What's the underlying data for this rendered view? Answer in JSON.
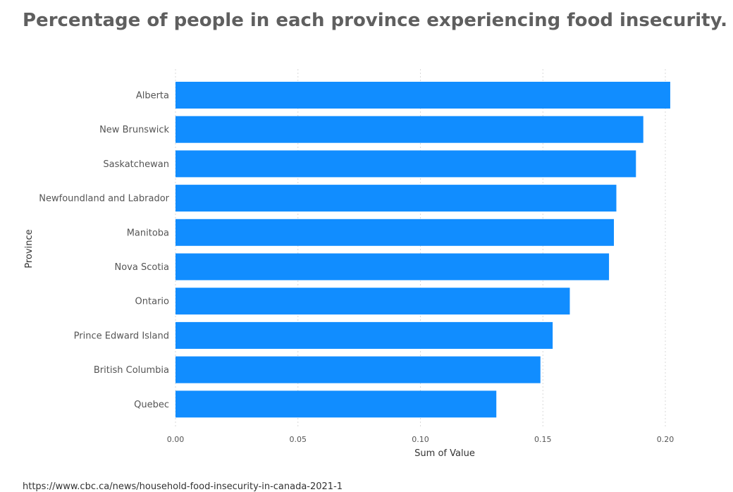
{
  "title": "Percentage of people in each province experiencing food insecurity.",
  "chart_data": {
    "type": "bar",
    "orientation": "horizontal",
    "categories": [
      "Alberta",
      "New Brunswick",
      "Saskatchewan",
      "Newfoundland and Labrador",
      "Manitoba",
      "Nova Scotia",
      "Ontario",
      "Prince Edward Island",
      "British Columbia",
      "Quebec"
    ],
    "values": [
      0.202,
      0.191,
      0.188,
      0.18,
      0.179,
      0.177,
      0.161,
      0.154,
      0.149,
      0.131
    ],
    "xlabel": "Sum of Value",
    "ylabel": "Province",
    "xlim": [
      0,
      0.2
    ],
    "xticks": [
      "0.00",
      "0.05",
      "0.10",
      "0.15",
      "0.20"
    ],
    "grid": true,
    "bar_color": "#118dff"
  },
  "footnote": "https://www.cbc.ca/news/household-food-insecurity-in-canada-2021-1"
}
